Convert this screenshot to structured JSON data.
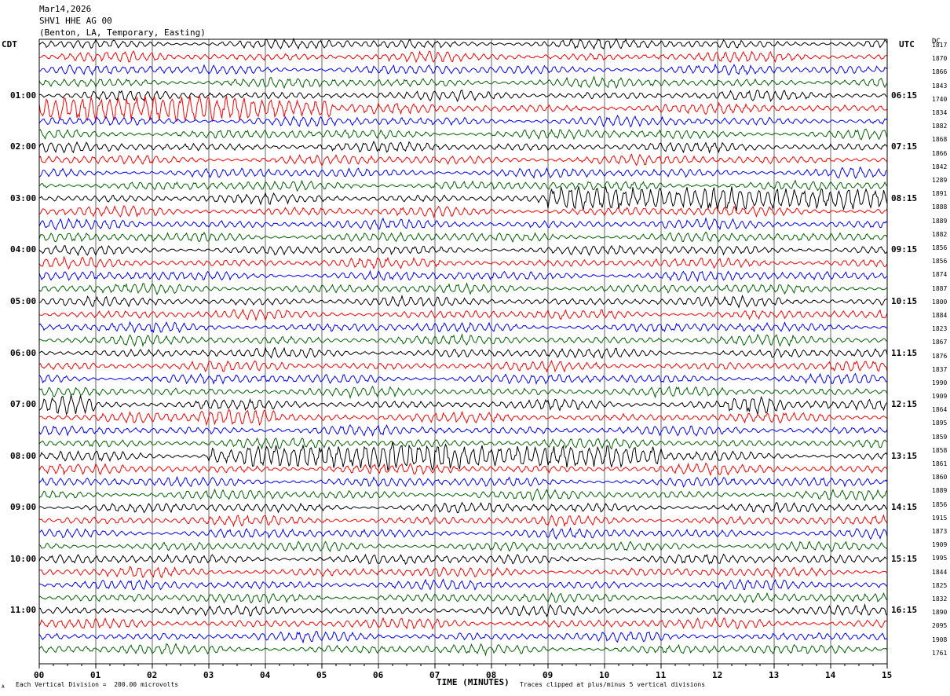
{
  "header": {
    "date": "Mar14,2026",
    "station": "SHV1 HHE AG 00",
    "location": "(Benton, LA, Temporary, Easting)"
  },
  "labels": {
    "left_tz": "CDT",
    "right_tz": "UTC",
    "dc_label": "DC",
    "footer_left": "Each Vertical Division =  200.00 microvolts",
    "footer_right": "Traces clipped at plus/minus 5 vertical divisions",
    "corner_mark": "A"
  },
  "colors": {
    "trace_cycle": [
      "#000000",
      "#ff0000",
      "#0000ff",
      "#006400"
    ],
    "gridline": "#000000"
  },
  "chart_data": {
    "type": "line",
    "title": "SHV1 HHE AG 00",
    "xlabel": "TIME (MINUTES)",
    "ylabel": "",
    "xlim": [
      0,
      15
    ],
    "x_ticks": [
      "00",
      "01",
      "02",
      "03",
      "04",
      "05",
      "06",
      "07",
      "08",
      "09",
      "10",
      "11",
      "12",
      "13",
      "14",
      "15"
    ],
    "trace_count": 48,
    "minutes_per_trace": 15,
    "left_hour_labels": [
      "01:00",
      "02:00",
      "03:00",
      "04:00",
      "05:00",
      "06:00",
      "07:00",
      "08:00",
      "09:00",
      "10:00",
      "11:00"
    ],
    "right_hour_labels": [
      "06:15",
      "07:15",
      "08:15",
      "09:15",
      "10:15",
      "11:15",
      "12:15",
      "13:15",
      "14:15",
      "15:15",
      "16:15"
    ],
    "dc_offsets": [
      "1817",
      "1870",
      "1866",
      "1843",
      "1740",
      "1834",
      "1882",
      "1868",
      "1866",
      "1842",
      "1289",
      "1891",
      "1888",
      "1889",
      "1882",
      "1856",
      "1856",
      "1874",
      "1887",
      "1800",
      "1884",
      "1823",
      "1867",
      "1876",
      "1837",
      "1990",
      "1909",
      "1864",
      "1895",
      "1859",
      "1858",
      "1861",
      "1860",
      "1889",
      "1856",
      "1915",
      "1873",
      "1909",
      "1995",
      "1844",
      "1825",
      "1832",
      "1890",
      "2095",
      "1908",
      "1761"
    ],
    "events": [
      {
        "trace": 5,
        "start_min": 0.0,
        "end_min": 5.2,
        "amplitude": "high"
      },
      {
        "trace": 12,
        "start_min": 9.0,
        "end_min": 15.0,
        "amplitude": "high"
      },
      {
        "trace": 28,
        "start_min": 0.0,
        "end_min": 1.0,
        "amplitude": "medium"
      },
      {
        "trace": 28,
        "start_min": 12.2,
        "end_min": 13.2,
        "amplitude": "medium"
      },
      {
        "trace": 29,
        "start_min": 2.8,
        "end_min": 4.2,
        "amplitude": "medium"
      },
      {
        "trace": 32,
        "start_min": 3.0,
        "end_min": 11.0,
        "amplitude": "high"
      }
    ]
  }
}
